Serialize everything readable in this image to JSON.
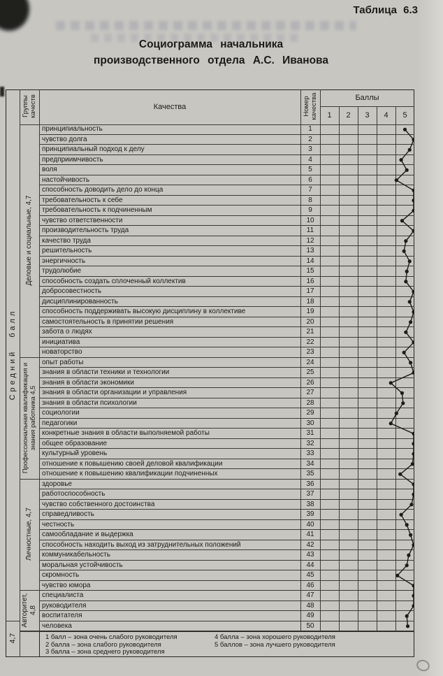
{
  "page": {
    "table_label": "Таблица 6.3",
    "title_line1": "Социограмма начальника",
    "title_line2": "производственного отдела А.С. Иванова"
  },
  "table": {
    "headers": {
      "avg_col": "Средний балл",
      "groups_col": "Группы качеств",
      "qualities": "Качества",
      "number": "Номер качества",
      "scores": "Баллы",
      "score_ticks": [
        "1",
        "2",
        "3",
        "4",
        "5"
      ]
    },
    "avg_total": "4,7",
    "groups": [
      {
        "label": "Деловые и социальные, 4,7",
        "from": 1,
        "to": 23
      },
      {
        "label": "Профессиональная квалификация и знания работника 4,5",
        "from": 24,
        "to": 35
      },
      {
        "label": "Личностные, 4,7",
        "from": 36,
        "to": 46
      },
      {
        "label": "Авторитет, 4,8",
        "from": 47,
        "to": 50
      }
    ],
    "rows": [
      {
        "n": 1,
        "quality": "принципиальность",
        "score": 4.5
      },
      {
        "n": 2,
        "quality": "чувство долга",
        "score": 5
      },
      {
        "n": 3,
        "quality": "принципиальный подход к делу",
        "score": 4.75
      },
      {
        "n": 4,
        "quality": "предприимчивость",
        "score": 4.3
      },
      {
        "n": 5,
        "quality": "воля",
        "score": 4.6
      },
      {
        "n": 6,
        "quality": "настойчивость",
        "score": 4.05
      },
      {
        "n": 7,
        "quality": "способность доводить дело до конца",
        "score": 5
      },
      {
        "n": 8,
        "quality": "требовательность к себе",
        "score": 5
      },
      {
        "n": 9,
        "quality": "требовательность к подчиненным",
        "score": 5
      },
      {
        "n": 10,
        "quality": "чувство ответственности",
        "score": 4.35
      },
      {
        "n": 11,
        "quality": "производительность труда",
        "score": 5
      },
      {
        "n": 12,
        "quality": "качество труда",
        "score": 4.55
      },
      {
        "n": 13,
        "quality": "решительность",
        "score": 4.45
      },
      {
        "n": 14,
        "quality": "энергичность",
        "score": 4.75
      },
      {
        "n": 15,
        "quality": "трудолюбие",
        "score": 4.6
      },
      {
        "n": 16,
        "quality": "способность создать сплоченный коллектив",
        "score": 4.55
      },
      {
        "n": 17,
        "quality": "добросовестность",
        "score": 5
      },
      {
        "n": 18,
        "quality": "дисциплинированность",
        "score": 4.75
      },
      {
        "n": 19,
        "quality": "способность поддерживать высокую дисциплину в коллективе",
        "score": 5
      },
      {
        "n": 20,
        "quality": "самостоятельность в принятии решения",
        "score": 4.8
      },
      {
        "n": 21,
        "quality": "забота о людях",
        "score": 4.55
      },
      {
        "n": 22,
        "quality": "инициатива",
        "score": 5
      },
      {
        "n": 23,
        "quality": "новаторство",
        "score": 4.45
      },
      {
        "n": 24,
        "quality": "опыт работы",
        "score": 4.8
      },
      {
        "n": 25,
        "quality": "знания в области техники и технологии",
        "score": 5
      },
      {
        "n": 26,
        "quality": "знания в области экономики",
        "score": 3.75
      },
      {
        "n": 27,
        "quality": "знания в области организации и управления",
        "score": 4.35
      },
      {
        "n": 28,
        "quality": "знания в области психологии",
        "score": 4.4
      },
      {
        "n": 29,
        "quality": "социологии",
        "score": 4.05
      },
      {
        "n": 30,
        "quality": "педагогики",
        "score": 3.75
      },
      {
        "n": 31,
        "quality": "конкретные знания в области выполняемой работы",
        "score": 5
      },
      {
        "n": 32,
        "quality": "общее образование",
        "score": 5
      },
      {
        "n": 33,
        "quality": "культурный уровень",
        "score": 5
      },
      {
        "n": 34,
        "quality": "отношение к повышению своей деловой квалификации",
        "score": 4.9
      },
      {
        "n": 35,
        "quality": "отношение к повышению квалификации подчиненных",
        "score": 4.25
      },
      {
        "n": 36,
        "quality": "здоровье",
        "score": 5
      },
      {
        "n": 37,
        "quality": "работоспособность",
        "score": 5
      },
      {
        "n": 38,
        "quality": "чувство собственного достоинства",
        "score": 4.85
      },
      {
        "n": 39,
        "quality": "справедливость",
        "score": 4.3
      },
      {
        "n": 40,
        "quality": "честность",
        "score": 4.6
      },
      {
        "n": 41,
        "quality": "самообладание и выдержка",
        "score": 4.8
      },
      {
        "n": 42,
        "quality": "способность находить выход из затруднительных положений",
        "score": 5
      },
      {
        "n": 43,
        "quality": "коммуникабельность",
        "score": 4.7
      },
      {
        "n": 44,
        "quality": "моральная устойчивость",
        "score": 4.6
      },
      {
        "n": 45,
        "quality": "скромность",
        "score": 4.1
      },
      {
        "n": 46,
        "quality": "чувство юмора",
        "score": 5
      },
      {
        "n": 47,
        "quality": "специалиста",
        "score": 5
      },
      {
        "n": 48,
        "quality": "руководителя",
        "score": 5
      },
      {
        "n": 49,
        "quality": "воспитателя",
        "score": 4.6
      },
      {
        "n": 50,
        "quality": "человека",
        "score": 4.65
      }
    ]
  },
  "legend": {
    "items_left": [
      "1 балл – зона очень слабого руководителя",
      "2 балла – зона слабого руководителя",
      "3 балла – зона среднего руководителя"
    ],
    "items_right": [
      "4 балла – зона хорошего руководителя",
      "5 баллов – зона лучшего руководителя"
    ]
  },
  "chart_data": {
    "type": "line",
    "title": "Социограмма начальника производственного отдела А.С. Иванова",
    "xlabel": "Номер качества",
    "ylabel": "Баллы",
    "x_range": [
      1,
      50
    ],
    "ylim": [
      1,
      5
    ],
    "legend_position": "bottom",
    "grid": true,
    "x": [
      1,
      2,
      3,
      4,
      5,
      6,
      7,
      8,
      9,
      10,
      11,
      12,
      13,
      14,
      15,
      16,
      17,
      18,
      19,
      20,
      21,
      22,
      23,
      24,
      25,
      26,
      27,
      28,
      29,
      30,
      31,
      32,
      33,
      34,
      35,
      36,
      37,
      38,
      39,
      40,
      41,
      42,
      43,
      44,
      45,
      46,
      47,
      48,
      49,
      50
    ],
    "values": [
      4.5,
      5,
      4.75,
      4.3,
      4.6,
      4.05,
      5,
      5,
      5,
      4.35,
      5,
      4.55,
      4.45,
      4.75,
      4.6,
      4.55,
      5,
      4.75,
      5,
      4.8,
      4.55,
      5,
      4.45,
      4.8,
      5,
      3.75,
      4.35,
      4.4,
      4.05,
      3.75,
      5,
      5,
      5,
      4.9,
      4.25,
      5,
      5,
      4.85,
      4.3,
      4.6,
      4.8,
      5,
      4.7,
      4.6,
      4.1,
      5,
      5,
      5,
      4.6,
      4.65
    ],
    "group_averages": {
      "Деловые и социальные": 4.7,
      "Профессиональная квалификация и знания работника": 4.5,
      "Личностные": 4.7,
      "Авторитет": 4.8,
      "Средний балл": 4.7
    }
  }
}
